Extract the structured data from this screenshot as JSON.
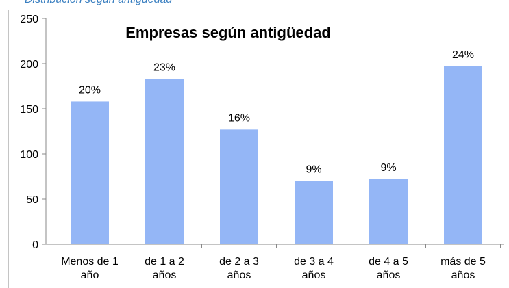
{
  "caption": "Distribución según antigüedad",
  "chart_data": {
    "type": "bar",
    "title": "Empresas según antigüedad",
    "categories": [
      "Menos de 1 año",
      "de 1 a 2 años",
      "de 2 a 3 años",
      "de 3 a 4 años",
      "de 4 a 5 años",
      "más de 5 años"
    ],
    "values": [
      158,
      183,
      127,
      70,
      72,
      197
    ],
    "value_labels": [
      "20%",
      "23%",
      "16%",
      "9%",
      "9%",
      "24%"
    ],
    "color": "#94b6f6",
    "ylim": [
      0,
      250
    ],
    "yticks": [
      0,
      50,
      100,
      150,
      200,
      250
    ],
    "grid": false
  }
}
